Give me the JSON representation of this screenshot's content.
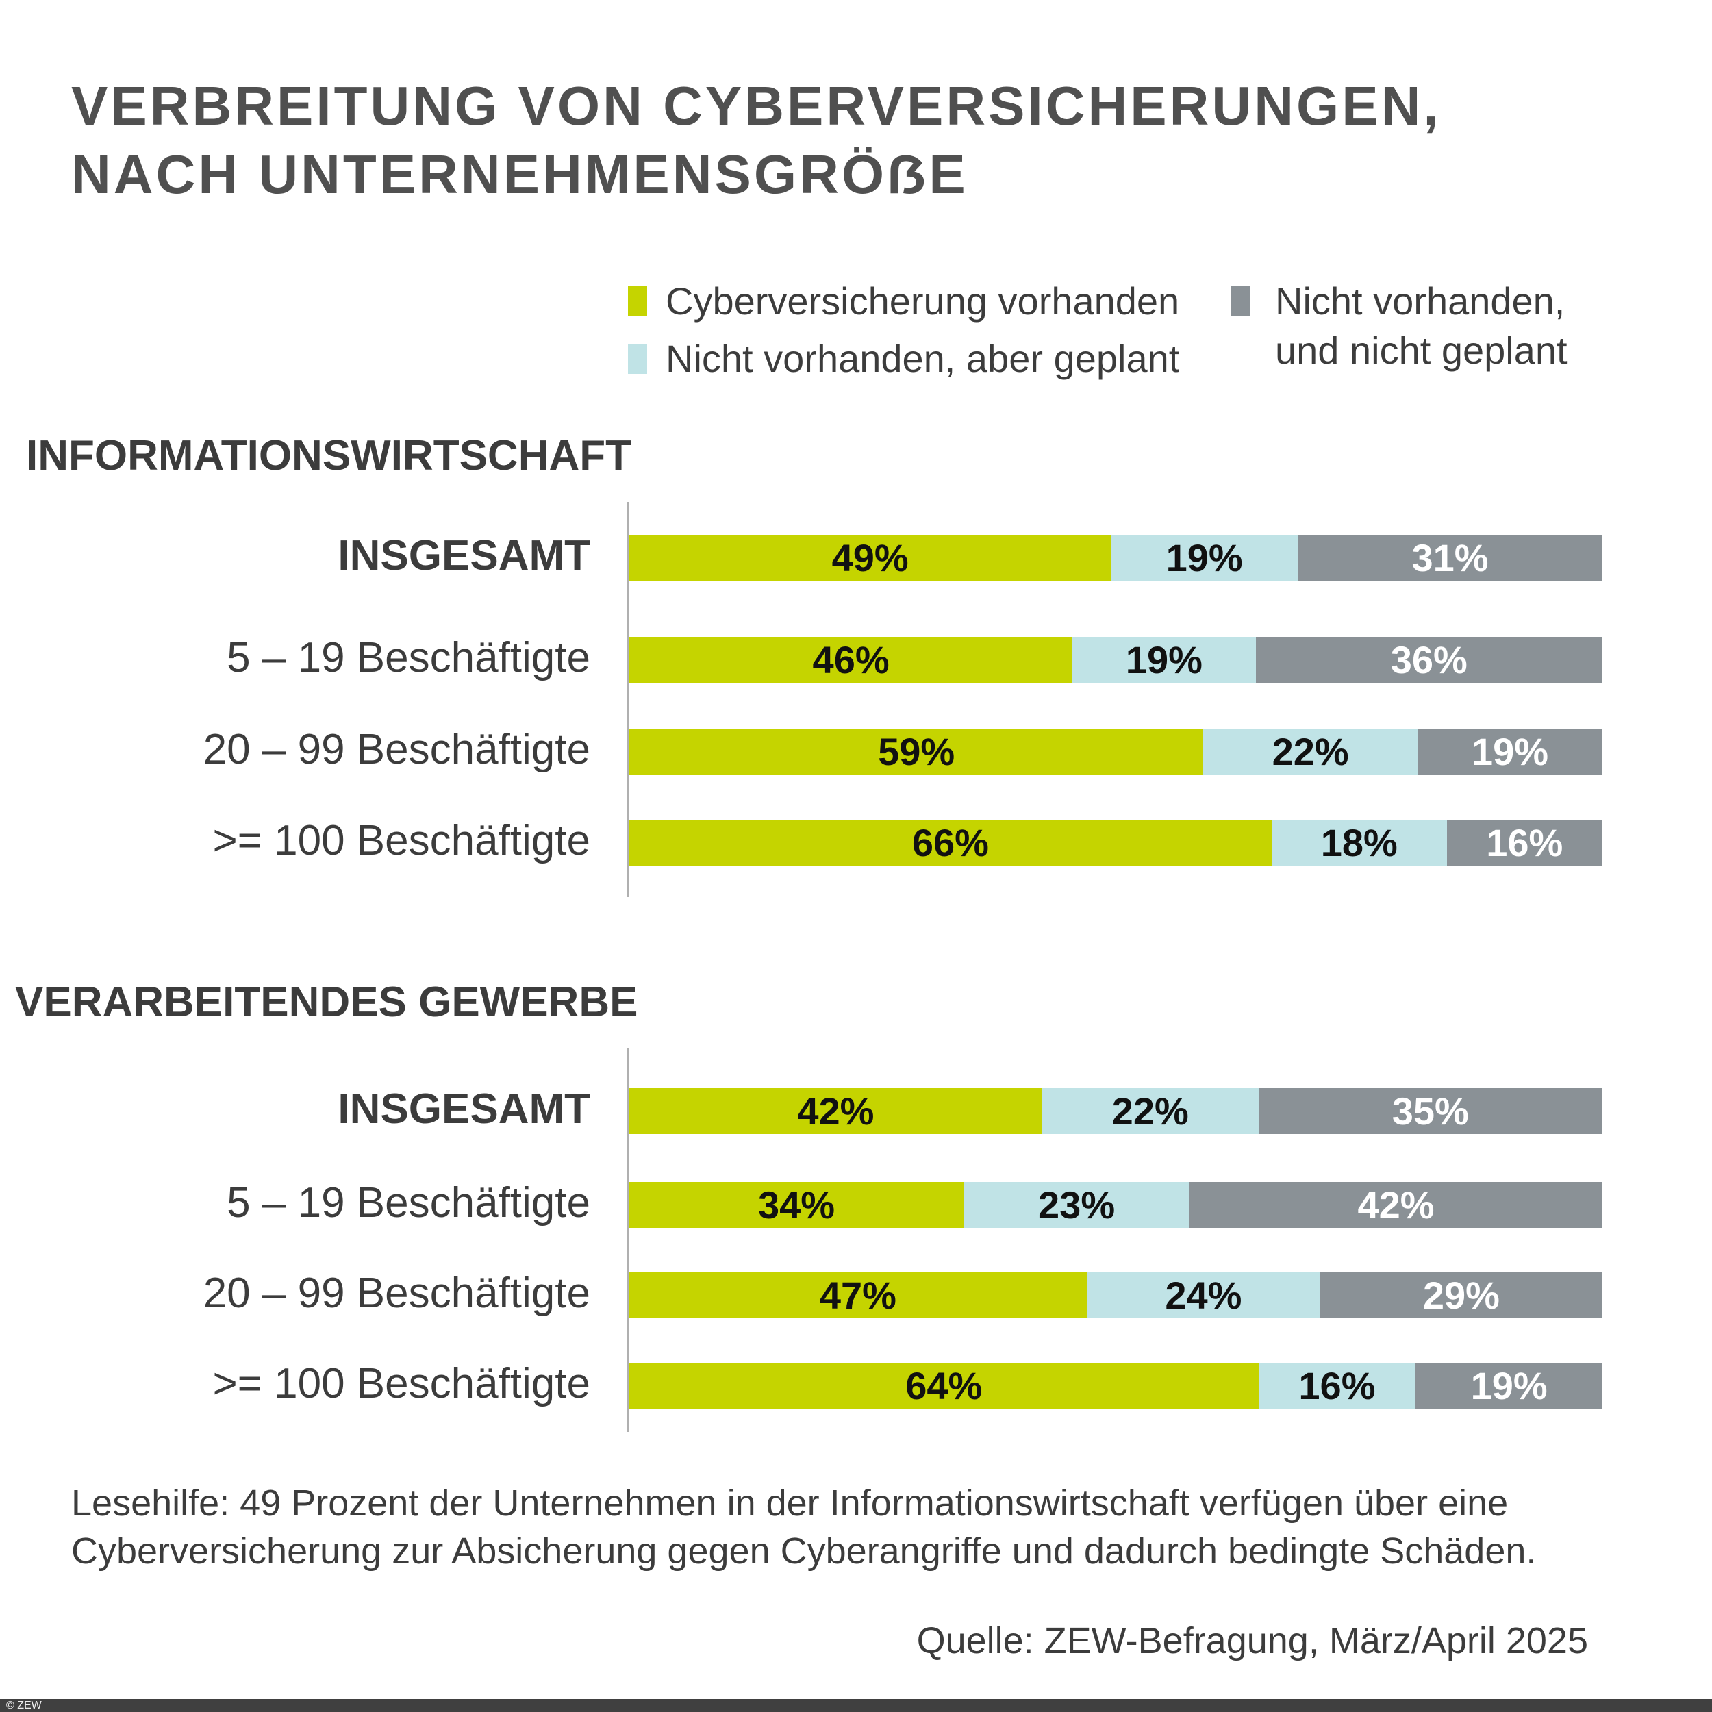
{
  "title": [
    "VERBREITUNG VON CYBERVERSICHERUNGEN,",
    "NACH UNTERNEHMENSGRÖẞE"
  ],
  "colors": {
    "vorhanden": "#c5d400",
    "geplant": "#c0e3e6",
    "nicht_geplant": "#8a9196"
  },
  "legend": [
    "Cyberversicherung vorhanden",
    "Nicht vorhanden, aber geplant",
    "Nicht vorhanden,",
    "und nicht geplant"
  ],
  "chart_data": [
    {
      "type": "bar",
      "stacked": true,
      "orientation": "horizontal",
      "title": "INFORMATIONSWIRTSCHAFT",
      "categories": [
        "INSGESAMT",
        "5 – 19 Beschäftigte",
        "20 – 99 Beschäftigte",
        ">= 100 Beschäftigte"
      ],
      "series": [
        {
          "name": "Cyberversicherung vorhanden",
          "values": [
            49,
            46,
            59,
            66
          ]
        },
        {
          "name": "Nicht vorhanden, aber geplant",
          "values": [
            19,
            19,
            22,
            18
          ]
        },
        {
          "name": "Nicht vorhanden, und nicht geplant",
          "values": [
            31,
            36,
            19,
            16
          ]
        }
      ],
      "unit": "%"
    },
    {
      "type": "bar",
      "stacked": true,
      "orientation": "horizontal",
      "title": "VERARBEITENDES GEWERBE",
      "categories": [
        "INSGESAMT",
        "5 – 19 Beschäftigte",
        "20 – 99 Beschäftigte",
        ">= 100 Beschäftigte"
      ],
      "series": [
        {
          "name": "Cyberversicherung vorhanden",
          "values": [
            42,
            34,
            47,
            64
          ]
        },
        {
          "name": "Nicht vorhanden, aber geplant",
          "values": [
            22,
            23,
            24,
            16
          ]
        },
        {
          "name": "Nicht vorhanden, und nicht geplant",
          "values": [
            35,
            42,
            29,
            19
          ]
        }
      ],
      "unit": "%"
    }
  ],
  "note": [
    "Lesehilfe: 49 Prozent der Unternehmen in der Informationswirtschaft verfügen über eine",
    "Cyberversicherung zur Absicherung gegen Cyberangriffe und dadurch bedingte Schäden."
  ],
  "source": "Quelle: ZEW-Befragung, März/April 2025",
  "copyright": "© ZEW"
}
